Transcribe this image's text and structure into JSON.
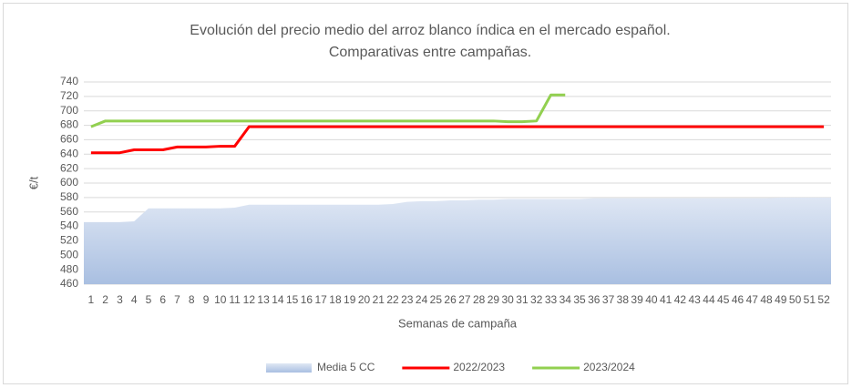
{
  "chart_data": {
    "type": "line",
    "title": [
      "Evolución del precio medio del arroz blanco índica en el mercado español.",
      "Comparativas entre campañas."
    ],
    "y_label": "€/t",
    "x_label": "Semanas de campaña",
    "categories": [
      1,
      2,
      3,
      4,
      5,
      6,
      7,
      8,
      9,
      10,
      11,
      12,
      13,
      14,
      15,
      16,
      17,
      18,
      19,
      20,
      21,
      22,
      23,
      24,
      25,
      26,
      27,
      28,
      29,
      30,
      31,
      32,
      33,
      34,
      35,
      36,
      37,
      38,
      39,
      40,
      41,
      42,
      43,
      44,
      45,
      46,
      47,
      48,
      49,
      50,
      51,
      52
    ],
    "ylim": [
      460,
      740
    ],
    "yticks": [
      460,
      480,
      500,
      520,
      540,
      560,
      580,
      600,
      620,
      640,
      660,
      680,
      700,
      720,
      740
    ],
    "grid": true,
    "legend": "bottom",
    "series": [
      {
        "name": "Media 5 CC",
        "kind": "area",
        "color": "#b4c7e7",
        "values": [
          546,
          546,
          546,
          547,
          565,
          565,
          565,
          565,
          565,
          565,
          566,
          570,
          570,
          570,
          570,
          570,
          570,
          570,
          570,
          570,
          570,
          571,
          574,
          575,
          575,
          576,
          576,
          577,
          577,
          578,
          578,
          578,
          578,
          578,
          578,
          579,
          579,
          579,
          579,
          579,
          579,
          579,
          579,
          579,
          579,
          579,
          579,
          579,
          580,
          580,
          580,
          580
        ]
      },
      {
        "name": "2022/2023",
        "kind": "line",
        "color": "#ff0000",
        "values": [
          642,
          642,
          642,
          646,
          646,
          646,
          650,
          650,
          650,
          651,
          651,
          678,
          678,
          678,
          678,
          678,
          678,
          678,
          678,
          678,
          678,
          678,
          678,
          678,
          678,
          678,
          678,
          678,
          678,
          678,
          678,
          678,
          678,
          678,
          678,
          678,
          678,
          678,
          678,
          678,
          678,
          678,
          678,
          678,
          678,
          678,
          678,
          678,
          678,
          678,
          678,
          678
        ]
      },
      {
        "name": "2023/2024",
        "kind": "line",
        "color": "#92d050",
        "values": [
          678,
          686,
          686,
          686,
          686,
          686,
          686,
          686,
          686,
          686,
          686,
          686,
          686,
          686,
          686,
          686,
          686,
          686,
          686,
          686,
          686,
          686,
          686,
          686,
          686,
          686,
          686,
          686,
          686,
          685,
          685,
          686,
          722,
          722,
          null,
          null,
          null,
          null,
          null,
          null,
          null,
          null,
          null,
          null,
          null,
          null,
          null,
          null,
          null,
          null,
          null,
          null
        ]
      }
    ]
  }
}
